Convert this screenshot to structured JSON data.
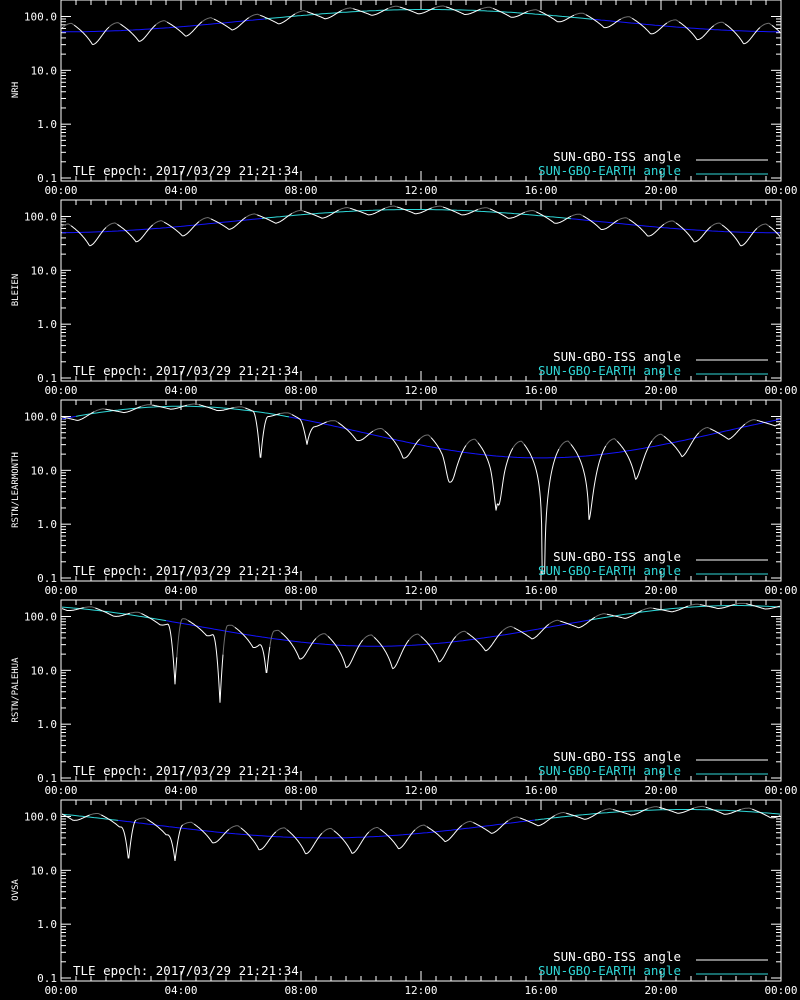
{
  "figure": {
    "tle_epoch_label": "TLE epoch: 2017/03/29 21:21:34",
    "legend": {
      "iss": "SUN-GBO-ISS angle",
      "earth": "SUN-GBO-EARTH angle"
    },
    "colors": {
      "background": "#000000",
      "axis": "#ffffff",
      "iss_visible": "#ffffff",
      "iss_hidden": "#6e6e6e",
      "earth_in_sun": "#2fd8d8",
      "earth_in_night": "#1414ff"
    }
  },
  "chart_data": [
    {
      "type": "line",
      "station": "NRH",
      "ylabel": "NRH",
      "yscale": "log",
      "ylim": [
        0.1,
        180
      ],
      "xlim_hours": [
        0,
        24
      ],
      "x_tick_labels": [
        "00:00",
        "04:00",
        "08:00",
        "12:00",
        "16:00",
        "20:00",
        "00:00"
      ],
      "y_tick_labels": [
        "0.1",
        "1.0",
        "10.0",
        "100.0"
      ],
      "grid": false,
      "legend_placement": "bottom-right",
      "earth_series": {
        "name": "SUN-GBO-EARTH angle",
        "mid_hour": 12.2,
        "max": 135,
        "min": 52,
        "sun_threshold": 90
      },
      "iss_series": {
        "name": "SUN-GBO-ISS angle",
        "period_hours": 1.55,
        "phase_hours": 1.05,
        "amp": 45,
        "dips": []
      }
    },
    {
      "type": "line",
      "station": "BLEIEN",
      "ylabel": "BLEIEN",
      "yscale": "log",
      "ylim": [
        0.1,
        180
      ],
      "xlim_hours": [
        0,
        24
      ],
      "x_tick_labels": [
        "00:00",
        "04:00",
        "08:00",
        "12:00",
        "16:00",
        "20:00",
        "00:00"
      ],
      "y_tick_labels": [
        "0.1",
        "1.0",
        "10.0",
        "100.0"
      ],
      "grid": false,
      "legend_placement": "bottom-right",
      "earth_series": {
        "name": "SUN-GBO-EARTH angle",
        "mid_hour": 11.8,
        "max": 135,
        "min": 50,
        "sun_threshold": 92
      },
      "iss_series": {
        "name": "SUN-GBO-ISS angle",
        "period_hours": 1.55,
        "phase_hours": 0.95,
        "amp": 45,
        "dips": []
      }
    },
    {
      "type": "line",
      "station": "RSTN/LEARMONTH",
      "ylabel": "RSTN/LEARMONTH",
      "yscale": "log",
      "ylim": [
        0.1,
        180
      ],
      "xlim_hours": [
        0,
        24
      ],
      "x_tick_labels": [
        "00:00",
        "04:00",
        "08:00",
        "12:00",
        "16:00",
        "20:00",
        "00:00"
      ],
      "y_tick_labels": [
        "0.1",
        "1.0",
        "10.0",
        "100.0"
      ],
      "grid": false,
      "legend_placement": "bottom-right",
      "earth_series": {
        "name": "SUN-GBO-EARTH angle",
        "mid_hour": 4.0,
        "max": 155,
        "min": 17,
        "sun_threshold": 100
      },
      "iss_series": {
        "name": "SUN-GBO-ISS angle",
        "period_hours": 1.55,
        "phase_hours": 0.55,
        "amp": 35,
        "dips": [
          {
            "hour": 6.65,
            "value": 15
          },
          {
            "hour": 8.2,
            "value": 30
          },
          {
            "hour": 12.95,
            "value": 6
          },
          {
            "hour": 14.55,
            "value": 2.5
          }
        ]
      }
    },
    {
      "type": "line",
      "station": "RSTN/PALEHUA",
      "ylabel": "RSTN/PALEHUA",
      "yscale": "log",
      "ylim": [
        0.1,
        180
      ],
      "xlim_hours": [
        0,
        24
      ],
      "x_tick_labels": [
        "00:00",
        "04:00",
        "08:00",
        "12:00",
        "16:00",
        "20:00",
        "00:00"
      ],
      "y_tick_labels": [
        "0.1",
        "1.0",
        "10.0",
        "100.0"
      ],
      "grid": false,
      "legend_placement": "bottom-right",
      "earth_series": {
        "name": "SUN-GBO-EARTH angle",
        "mid_hour": 22.5,
        "max": 160,
        "min": 28,
        "sun_threshold": 85
      },
      "iss_series": {
        "name": "SUN-GBO-ISS angle",
        "period_hours": 1.55,
        "phase_hours": 0.2,
        "amp": 35,
        "dips": [
          {
            "hour": 3.8,
            "value": 5.5
          },
          {
            "hour": 5.3,
            "value": 2.5
          },
          {
            "hour": 6.85,
            "value": 8
          }
        ]
      }
    },
    {
      "type": "line",
      "station": "OVSA",
      "ylabel": "OVSA",
      "yscale": "log",
      "ylim": [
        0.1,
        180
      ],
      "xlim_hours": [
        0,
        24
      ],
      "x_tick_labels": [
        "00:00",
        "04:00",
        "08:00",
        "12:00",
        "16:00",
        "20:00",
        "00:00"
      ],
      "y_tick_labels": [
        "0.1",
        "1.0",
        "10.0",
        "100.0"
      ],
      "grid": false,
      "legend_placement": "bottom-right",
      "earth_series": {
        "name": "SUN-GBO-EARTH angle",
        "mid_hour": 20.8,
        "max": 135,
        "min": 40,
        "sun_threshold": 85
      },
      "iss_series": {
        "name": "SUN-GBO-ISS angle",
        "period_hours": 1.55,
        "phase_hours": 0.4,
        "amp": 40,
        "dips": [
          {
            "hour": 2.25,
            "value": 15
          },
          {
            "hour": 3.8,
            "value": 15
          }
        ]
      }
    }
  ]
}
